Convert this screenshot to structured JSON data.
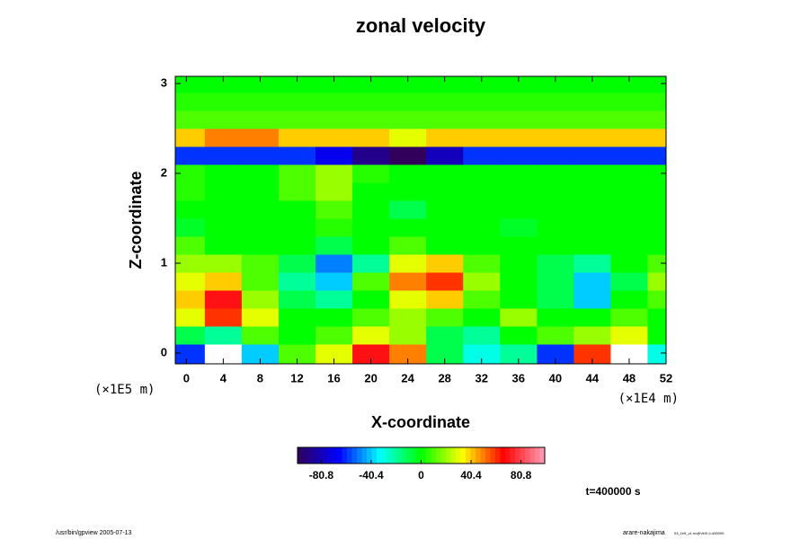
{
  "chart_data": {
    "type": "heatmap",
    "title": "zonal velocity",
    "xlabel": "X-coordinate",
    "ylabel": "Z-coordinate",
    "xunit": "(×1E4 m)",
    "yunit": "(×1E5 m)",
    "annotation": "t=400000 s",
    "footer_left": "/usr/bin/gpview 2005-07-13",
    "footer_right": "arare-nakajima",
    "footer_right_small": "03_1e5_v1.nc@VelX,t=400000",
    "x": [
      0,
      4,
      8,
      12,
      16,
      20,
      24,
      28,
      32,
      36,
      40,
      44,
      48,
      52
    ],
    "y": [
      0,
      0.2,
      0.4,
      0.6,
      0.8,
      1.0,
      1.2,
      1.4,
      1.6,
      1.8,
      2.0,
      2.2,
      2.4,
      2.6,
      2.8,
      3.0
    ],
    "values": [
      [
        -60,
        -110,
        -40,
        10,
        30,
        70,
        50,
        -10,
        -30,
        -20,
        -60,
        60,
        110,
        -30
      ],
      [
        -10,
        -20,
        10,
        0,
        10,
        30,
        20,
        -10,
        -20,
        0,
        10,
        20,
        30,
        0
      ],
      [
        30,
        60,
        30,
        0,
        0,
        10,
        20,
        10,
        0,
        20,
        0,
        0,
        10,
        0
      ],
      [
        40,
        70,
        20,
        -10,
        -20,
        0,
        30,
        40,
        10,
        0,
        -10,
        -40,
        0,
        10
      ],
      [
        30,
        40,
        10,
        -20,
        -40,
        10,
        50,
        60,
        20,
        0,
        -10,
        -40,
        -10,
        20
      ],
      [
        20,
        20,
        10,
        -10,
        -50,
        -20,
        30,
        40,
        10,
        0,
        -10,
        -20,
        0,
        10
      ],
      [
        10,
        0,
        0,
        0,
        -10,
        0,
        10,
        0,
        0,
        0,
        0,
        0,
        0,
        0
      ],
      [
        -5,
        0,
        0,
        0,
        5,
        0,
        0,
        0,
        0,
        -5,
        0,
        0,
        0,
        0
      ],
      [
        0,
        0,
        0,
        0,
        10,
        0,
        -10,
        0,
        0,
        0,
        0,
        0,
        0,
        0
      ],
      [
        5,
        0,
        0,
        10,
        20,
        0,
        0,
        0,
        0,
        0,
        0,
        0,
        0,
        0
      ],
      [
        5,
        0,
        0,
        10,
        20,
        5,
        0,
        0,
        0,
        0,
        0,
        0,
        0,
        0
      ],
      [
        -60,
        -60,
        -60,
        -60,
        -70,
        -90,
        -100,
        -80,
        -60,
        -60,
        -60,
        -60,
        -60,
        -60
      ],
      [
        40,
        50,
        50,
        40,
        40,
        40,
        30,
        40,
        40,
        40,
        40,
        40,
        40,
        40
      ],
      [
        10,
        10,
        10,
        10,
        10,
        10,
        10,
        10,
        10,
        10,
        10,
        10,
        10,
        10
      ],
      [
        5,
        5,
        5,
        5,
        5,
        5,
        5,
        5,
        5,
        5,
        5,
        5,
        5,
        5
      ],
      [
        0,
        0,
        0,
        0,
        0,
        0,
        0,
        0,
        0,
        0,
        0,
        0,
        0,
        0
      ]
    ],
    "xlim": [
      -1.2,
      52
    ],
    "ylim": [
      -0.12,
      3.08
    ],
    "xticks": [
      0,
      4,
      8,
      12,
      16,
      20,
      24,
      28,
      32,
      36,
      40,
      44,
      48,
      52
    ],
    "yticks": [
      0,
      1,
      2,
      3
    ],
    "colorbar": {
      "clim": [
        -100,
        100
      ],
      "ticks": [
        -80.8,
        -40.4,
        0,
        40.4,
        80.8
      ],
      "colormap": [
        "#30005a",
        "#0000ff",
        "#00ffff",
        "#00ff00",
        "#ffff00",
        "#ff0000",
        "#ffa0b8"
      ]
    }
  }
}
